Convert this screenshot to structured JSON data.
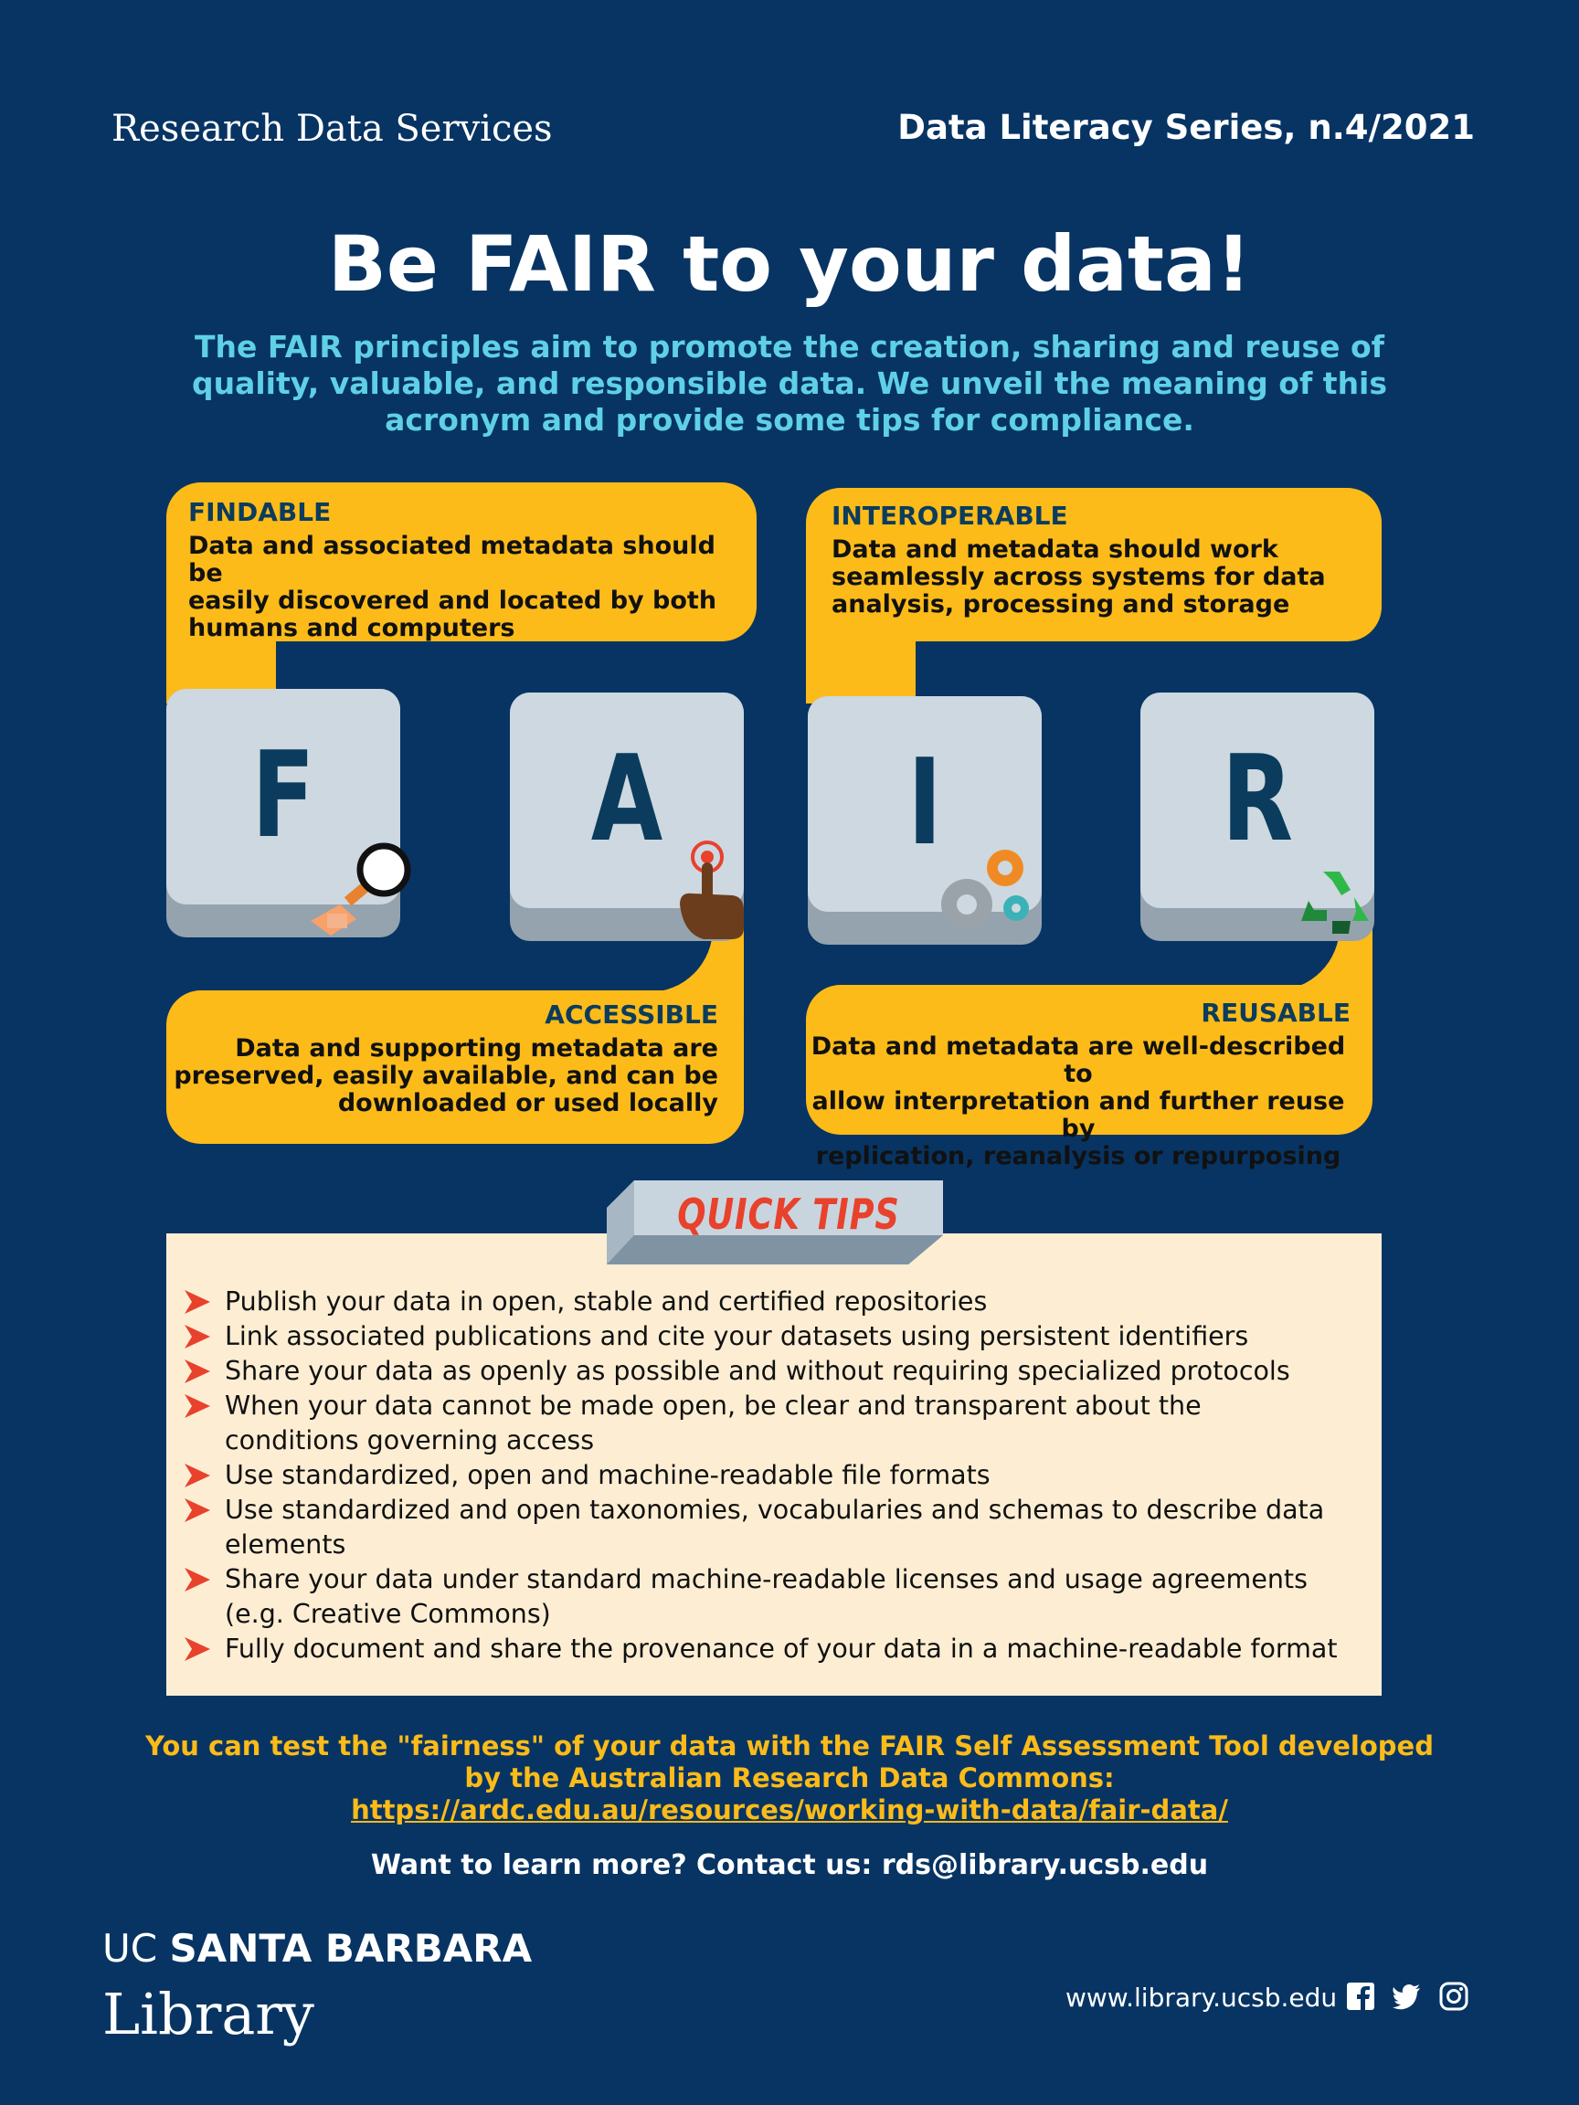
{
  "header": {
    "org": "Research Data Services",
    "series": "Data Literacy Series, n.4/2021"
  },
  "title": "Be FAIR to your data!",
  "subtitle": "The FAIR principles aim to promote the creation, sharing and reuse of quality, valuable, and responsible data. We unveil the meaning of this acronym and provide some tips for compliance.",
  "principles": {
    "findable": {
      "title": "FINDABLE",
      "lines": [
        "Data and associated metadata should be",
        "easily discovered and located by both",
        "humans and computers"
      ]
    },
    "interoperable": {
      "title": "INTEROPERABLE",
      "lines": [
        "Data and metadata should work",
        "seamlessly across systems for data",
        "analysis, processing and storage"
      ]
    },
    "accessible": {
      "title": "ACCESSIBLE",
      "lines": [
        "Data and supporting metadata are",
        "preserved, easily available, and can be",
        "downloaded or used locally"
      ]
    },
    "reusable": {
      "title": "REUSABLE",
      "lines": [
        "Data and metadata are well-described to",
        "allow interpretation and further reuse by",
        "replication, reanalysis or repurposing"
      ]
    }
  },
  "keys": [
    "F",
    "A",
    "I",
    "R"
  ],
  "icons": {
    "f": "magnifier-icon",
    "a": "pointing-hand-icon",
    "i": "gears-icon",
    "r": "recycle-icon"
  },
  "tips": {
    "heading": "QUICK TIPS",
    "items": [
      [
        "Publish your data in open, stable and certified repositories"
      ],
      [
        "Link associated publications and cite your datasets using persistent identifiers"
      ],
      [
        "Share your data as openly as possible and without requiring specialized protocols"
      ],
      [
        "When your data cannot be made open, be clear and transparent about the",
        "conditions governing access"
      ],
      [
        "Use standardized, open and machine-readable file formats"
      ],
      [
        "Use standardized and open taxonomies, vocabularies and schemas to describe data",
        "elements"
      ],
      [
        "Share your data under standard machine-readable licenses and usage agreements",
        "(e.g. Creative Commons)"
      ],
      [
        "Fully document and share the provenance of your data in a machine-readable format"
      ]
    ]
  },
  "footer": {
    "line1": "You can test the \"fairness\" of your data with the FAIR Self Assessment Tool developed",
    "line2": "by the Australian Research Data Commons:",
    "link": "https://ardc.edu.au/resources/working-with-data/fair-data/",
    "contact": "Want to learn more? Contact us: rds@library.ucsb.edu"
  },
  "branding": {
    "uc": "UC",
    "santa_barbara": "SANTA BARBARA",
    "library": "Library",
    "website": "www.library.ucsb.edu"
  },
  "colors": {
    "background": "#073463",
    "accent_yellow": "#fcbb19",
    "subtitle_cyan": "#5fd0e5",
    "tips_red": "#e8412c",
    "tips_bg": "#fdeed3"
  }
}
